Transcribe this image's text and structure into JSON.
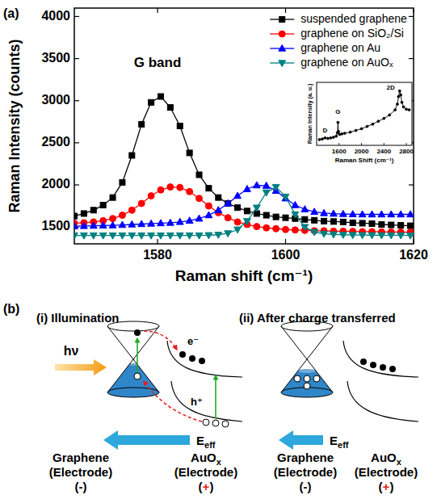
{
  "chart_data": [
    {
      "type": "line",
      "x": [
        1567,
        1568.5,
        1570,
        1571.5,
        1573,
        1574.5,
        1576,
        1577.5,
        1579,
        1580.5,
        1582,
        1583.5,
        1585,
        1586.5,
        1588,
        1589.5,
        1591,
        1592.5,
        1594,
        1595.5,
        1597,
        1598.5,
        1600,
        1601.5,
        1603,
        1604.5,
        1606,
        1607.5,
        1609,
        1610.5,
        1612,
        1613.5,
        1615,
        1616.5,
        1618,
        1619.5
      ],
      "xlim": [
        1567,
        1620
      ],
      "xticks": [
        1580,
        1600,
        1620
      ],
      "ylim": [
        1300,
        4100
      ],
      "yticks": [
        1500,
        2000,
        2500,
        3000,
        3500,
        4000
      ],
      "x_label": "Raman shift (cm⁻¹)",
      "y_label": "Raman Intensity (counts)",
      "legend": "top-right",
      "grid": false,
      "annotations": [
        {
          "text": "G band",
          "x": 1580,
          "y": 3400
        }
      ],
      "series": [
        {
          "name": "suspended graphene",
          "color": "#000000",
          "marker": "square",
          "line_style": "solid",
          "values": [
            1630,
            1660,
            1700,
            1760,
            1850,
            2030,
            2350,
            2720,
            2980,
            3050,
            2920,
            2700,
            2380,
            2120,
            1960,
            1850,
            1780,
            1730,
            1690,
            1660,
            1640,
            1620,
            1610,
            1600,
            1590,
            1580,
            1570,
            1565,
            1560,
            1550,
            1545,
            1540,
            1530,
            1525,
            1520,
            1515
          ]
        },
        {
          "name": "graphene on SiO₂/Si",
          "color": "#ff0000",
          "marker": "circle",
          "line_style": "solid",
          "values": [
            1545,
            1550,
            1560,
            1575,
            1600,
            1640,
            1700,
            1780,
            1870,
            1940,
            1975,
            1970,
            1920,
            1840,
            1750,
            1670,
            1610,
            1560,
            1530,
            1505,
            1490,
            1480,
            1470,
            1465,
            1460,
            1455,
            1455,
            1450,
            1450,
            1448,
            1445,
            1445,
            1442,
            1440,
            1440,
            1438
          ]
        },
        {
          "name": "graphene on Au",
          "color": "#0000ff",
          "marker": "triangle-up",
          "line_style": "solid",
          "values": [
            1510,
            1512,
            1515,
            1518,
            1520,
            1525,
            1530,
            1535,
            1540,
            1545,
            1550,
            1560,
            1575,
            1600,
            1640,
            1700,
            1780,
            1870,
            1950,
            1995,
            1990,
            1930,
            1840,
            1760,
            1710,
            1680,
            1665,
            1658,
            1655,
            1652,
            1650,
            1650,
            1650,
            1650,
            1650,
            1650
          ]
        },
        {
          "name": "graphene on AuOₓ",
          "color": "#008080",
          "marker": "triangle-down",
          "line_style": "solid",
          "values": [
            1400,
            1400,
            1400,
            1400,
            1400,
            1400,
            1400,
            1400,
            1400,
            1400,
            1400,
            1400,
            1400,
            1400,
            1403,
            1408,
            1425,
            1470,
            1570,
            1730,
            1910,
            1975,
            1860,
            1650,
            1500,
            1440,
            1420,
            1412,
            1408,
            1405,
            1404,
            1403,
            1402,
            1402,
            1401,
            1400
          ]
        }
      ]
    },
    {
      "type": "line",
      "x": [
        1250,
        1300,
        1350,
        1400,
        1450,
        1500,
        1550,
        1570,
        1580,
        1590,
        1610,
        1650,
        1700,
        1800,
        1900,
        2000,
        2100,
        2200,
        2300,
        2400,
        2500,
        2600,
        2640,
        2660,
        2680,
        2700,
        2720,
        2750,
        2800,
        2850
      ],
      "xlim": [
        1200,
        2900
      ],
      "xticks": [
        1600,
        2000,
        2400,
        2800
      ],
      "ylim": [
        0,
        110
      ],
      "tick_labels": "x",
      "x_label": "Raman Shift (cm⁻¹)",
      "y_label": "Raman Intensity (a. u.)",
      "annotations": [
        {
          "text": "D",
          "x": 1350,
          "y": 22
        },
        {
          "text": "G",
          "x": 1580,
          "y": 55
        },
        {
          "text": "2D",
          "x": 2520,
          "y": 98
        }
      ],
      "series": [
        {
          "color": "#000000",
          "marker": "dot",
          "line_style": "solid",
          "values": [
            10,
            11,
            13,
            12,
            13,
            14,
            16,
            22,
            40,
            24,
            19,
            20,
            21,
            23,
            26,
            29,
            33,
            37,
            42,
            47,
            53,
            62,
            72,
            85,
            95,
            88,
            75,
            67,
            63,
            62
          ]
        }
      ]
    }
  ],
  "panel_labels": [
    "(a)",
    "(b)"
  ],
  "diagram": {
    "panels": [
      {
        "title": "(i) Illumination",
        "light": "hν",
        "electron": "e⁻",
        "hole": "h⁺",
        "field": {
          "text": "E",
          "sub": "eff"
        },
        "left": [
          "Graphene",
          "(Electrode)",
          "(-)"
        ],
        "right": [
          {
            "text": "AuO",
            "sub": "x"
          },
          "(Electrode)",
          "(+)"
        ]
      },
      {
        "title": "(ii) After charge transferred",
        "field": {
          "text": "E",
          "sub": "eff"
        },
        "left": [
          "Graphene",
          "(Electrode)",
          "(-)"
        ],
        "right": [
          {
            "text": "AuO",
            "sub": "x"
          },
          "(Electrode)",
          "(+)"
        ]
      }
    ]
  }
}
